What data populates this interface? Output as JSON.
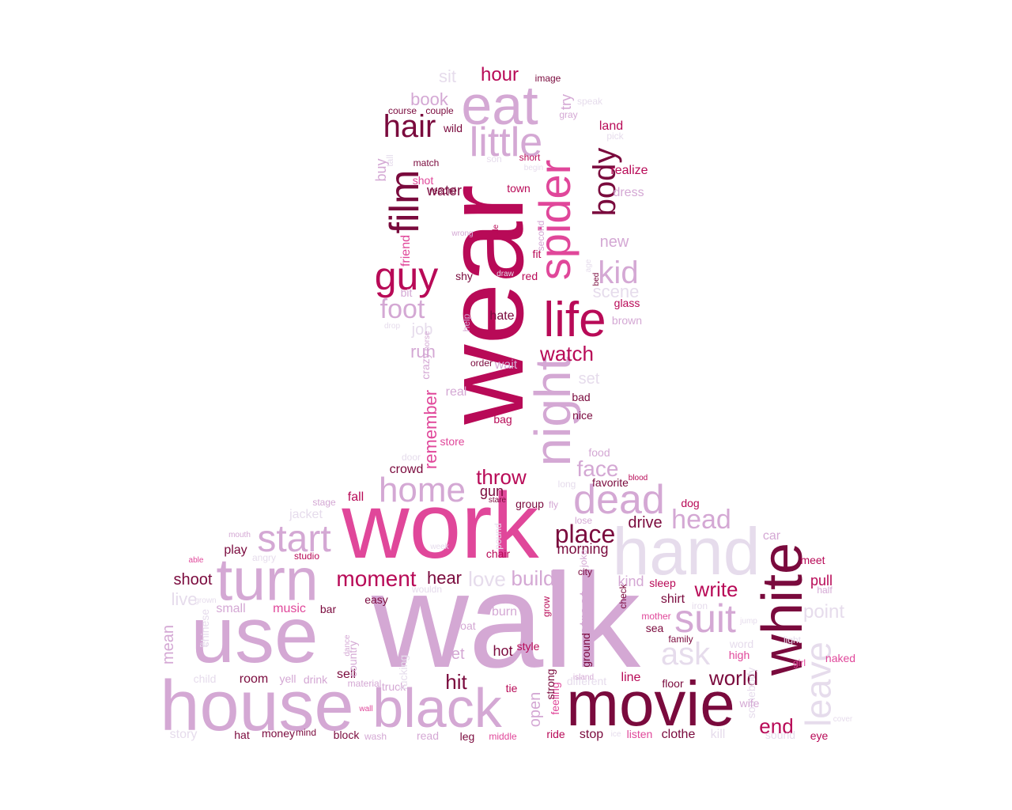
{
  "palette": {
    "c1": "#7a0a3d",
    "c2": "#b80a57",
    "c3": "#e0479a",
    "c4": "#d4a8d4",
    "c5": "#e6dcec"
  },
  "words": [
    {
      "text": "walk",
      "color": "c4",
      "rot": 0
    },
    {
      "text": "wear",
      "color": "c2",
      "rot": 1
    },
    {
      "text": "work",
      "color": "c3",
      "rot": 0
    },
    {
      "text": "use",
      "color": "c4",
      "rot": 0
    },
    {
      "text": "house",
      "color": "c4",
      "rot": 0
    },
    {
      "text": "movie",
      "color": "c1",
      "rot": 0
    },
    {
      "text": "hand",
      "color": "c5",
      "rot": 0
    },
    {
      "text": "white",
      "color": "c1",
      "rot": 1
    },
    {
      "text": "black",
      "color": "c4",
      "rot": 0
    },
    {
      "text": "turn",
      "color": "c4",
      "rot": 0
    },
    {
      "text": "night",
      "color": "c4",
      "rot": 1
    },
    {
      "text": "spider",
      "color": "c3",
      "rot": 1
    },
    {
      "text": "eat",
      "color": "c4",
      "rot": 0
    },
    {
      "text": "life",
      "color": "c2",
      "rot": 0
    },
    {
      "text": "film",
      "color": "c1",
      "rot": 1
    },
    {
      "text": "dead",
      "color": "c4",
      "rot": 0
    },
    {
      "text": "start",
      "color": "c4",
      "rot": 0
    },
    {
      "text": "home",
      "color": "c4",
      "rot": 0
    },
    {
      "text": "little",
      "color": "c4",
      "rot": 0
    },
    {
      "text": "guy",
      "color": "c2",
      "rot": 0
    },
    {
      "text": "body",
      "color": "c1",
      "rot": 1
    },
    {
      "text": "suit",
      "color": "c4",
      "rot": 0
    },
    {
      "text": "leave",
      "color": "c5",
      "rot": 1
    },
    {
      "text": "hair",
      "color": "c1",
      "rot": 0
    },
    {
      "text": "head",
      "color": "c4",
      "rot": 0
    },
    {
      "text": "kid",
      "color": "c4",
      "rot": 0
    },
    {
      "text": "ask",
      "color": "c5",
      "rot": 0
    },
    {
      "text": "foot",
      "color": "c4",
      "rot": 0
    },
    {
      "text": "place",
      "color": "c1",
      "rot": 0
    },
    {
      "text": "face",
      "color": "c4",
      "rot": 0
    },
    {
      "text": "moment",
      "color": "c2",
      "rot": 0
    },
    {
      "text": "watch",
      "color": "c2",
      "rot": 0
    },
    {
      "text": "world",
      "color": "c1",
      "rot": 0
    },
    {
      "text": "write",
      "color": "c2",
      "rot": 0
    },
    {
      "text": "throw",
      "color": "c2",
      "rot": 0
    },
    {
      "text": "hour",
      "color": "c2",
      "rot": 0
    },
    {
      "text": "hit",
      "color": "c1",
      "rot": 0
    },
    {
      "text": "end",
      "color": "c2",
      "rot": 0
    },
    {
      "text": "hear",
      "color": "c1",
      "rot": 0
    },
    {
      "text": "build",
      "color": "c4",
      "rot": 0
    },
    {
      "text": "love",
      "color": "c5",
      "rot": 0
    },
    {
      "text": "remember",
      "color": "c3",
      "rot": 1
    },
    {
      "text": "book",
      "color": "c4",
      "rot": 0
    },
    {
      "text": "scene",
      "color": "c5",
      "rot": 0
    },
    {
      "text": "run",
      "color": "c4",
      "rot": 0
    },
    {
      "text": "drive",
      "color": "c1",
      "rot": 0
    },
    {
      "text": "point",
      "color": "c5",
      "rot": 0
    },
    {
      "text": "mean",
      "color": "c4",
      "rot": 1
    },
    {
      "text": "live",
      "color": "c5",
      "rot": 0
    },
    {
      "text": "street",
      "color": "c4",
      "rot": 1
    },
    {
      "text": "shoot",
      "color": "c1",
      "rot": 0
    },
    {
      "text": "new",
      "color": "c4",
      "rot": 0
    },
    {
      "text": "sit",
      "color": "c5",
      "rot": 0
    },
    {
      "text": "job",
      "color": "c5",
      "rot": 0
    },
    {
      "text": "set",
      "color": "c5",
      "rot": 0
    },
    {
      "text": "water",
      "color": "c1",
      "rot": 0
    },
    {
      "text": "gun",
      "color": "c1",
      "rot": 0
    },
    {
      "text": "kind",
      "color": "c4",
      "rot": 0
    },
    {
      "text": "morning",
      "color": "c1",
      "rot": 0
    },
    {
      "text": "open",
      "color": "c4",
      "rot": 1
    },
    {
      "text": "let",
      "color": "c4",
      "rot": 0
    },
    {
      "text": "hot",
      "color": "c1",
      "rot": 0
    },
    {
      "text": "line",
      "color": "c2",
      "rot": 0
    },
    {
      "text": "pull",
      "color": "c2",
      "rot": 0
    },
    {
      "text": "small",
      "color": "c4",
      "rot": 0
    },
    {
      "text": "play",
      "color": "c1",
      "rot": 0
    },
    {
      "text": "try",
      "color": "c4",
      "rot": 1
    },
    {
      "text": "buy",
      "color": "c4",
      "rot": 1
    },
    {
      "text": "friend",
      "color": "c3",
      "rot": 1
    },
    {
      "text": "dress",
      "color": "c4",
      "rot": 0
    },
    {
      "text": "crazy",
      "color": "c4",
      "rot": 1
    },
    {
      "text": "glass",
      "color": "c2",
      "rot": 0
    },
    {
      "text": "wait",
      "color": "c4",
      "rot": 0
    },
    {
      "text": "real",
      "color": "c4",
      "rot": 0
    },
    {
      "text": "car",
      "color": "c4",
      "rot": 0
    },
    {
      "text": "dog",
      "color": "c2",
      "rot": 0
    },
    {
      "text": "sleep",
      "color": "c2",
      "rot": 0
    },
    {
      "text": "floor",
      "color": "c1",
      "rot": 0
    },
    {
      "text": "clothe",
      "color": "c1",
      "rot": 0
    },
    {
      "text": "naked",
      "color": "c3",
      "rot": 0
    },
    {
      "text": "ground",
      "color": "c1",
      "rot": 1
    },
    {
      "text": "bar",
      "color": "c1",
      "rot": 0
    },
    {
      "text": "burn",
      "color": "c4",
      "rot": 0
    },
    {
      "text": "boat",
      "color": "c4",
      "rot": 0
    },
    {
      "text": "sell",
      "color": "c1",
      "rot": 0
    },
    {
      "text": "room",
      "color": "c1",
      "rot": 0
    },
    {
      "text": "crowd",
      "color": "c1",
      "rot": 0
    },
    {
      "text": "story",
      "color": "c5",
      "rot": 0
    },
    {
      "text": "music",
      "color": "c3",
      "rot": 0
    },
    {
      "text": "word",
      "color": "c5",
      "rot": 0
    },
    {
      "text": "meet",
      "color": "c2",
      "rot": 0
    },
    {
      "text": "eye",
      "color": "c2",
      "rot": 0
    },
    {
      "text": "listen",
      "color": "c3",
      "rot": 0
    },
    {
      "text": "ride",
      "color": "c2",
      "rot": 0
    },
    {
      "text": "stop",
      "color": "c1",
      "rot": 0
    },
    {
      "text": "truck",
      "color": "c4",
      "rot": 0
    },
    {
      "text": "leg",
      "color": "c1",
      "rot": 0
    },
    {
      "text": "block",
      "color": "c1",
      "rot": 0
    },
    {
      "text": "mind",
      "color": "c1",
      "rot": 0
    },
    {
      "text": "money",
      "color": "c1",
      "rot": 0
    },
    {
      "text": "hat",
      "color": "c1",
      "rot": 0
    },
    {
      "text": "drink",
      "color": "c4",
      "rot": 0
    },
    {
      "text": "bad",
      "color": "c1",
      "rot": 0
    },
    {
      "text": "nice",
      "color": "c1",
      "rot": 0
    },
    {
      "text": "hate",
      "color": "c1",
      "rot": 0
    },
    {
      "text": "shy",
      "color": "c1",
      "rot": 0
    },
    {
      "text": "realize",
      "color": "c2",
      "rot": 0
    },
    {
      "text": "land",
      "color": "c2",
      "rot": 0
    },
    {
      "text": "pick",
      "color": "c5",
      "rot": 0
    },
    {
      "text": "wild",
      "color": "c1",
      "rot": 0
    },
    {
      "text": "town",
      "color": "c2",
      "rot": 0
    },
    {
      "text": "shot",
      "color": "c3",
      "rot": 0
    },
    {
      "text": "match",
      "color": "c1",
      "rot": 0
    },
    {
      "text": "record",
      "color": "c1",
      "rot": 0
    },
    {
      "text": "short",
      "color": "c2",
      "rot": 0
    },
    {
      "text": "course",
      "color": "c1",
      "rot": 0
    },
    {
      "text": "couple",
      "color": "c1",
      "rot": 0
    },
    {
      "text": "speak",
      "color": "c5",
      "rot": 0
    },
    {
      "text": "image",
      "color": "c1",
      "rot": 0
    },
    {
      "text": "gray",
      "color": "c4",
      "rot": 0
    },
    {
      "text": "son",
      "color": "c5",
      "rot": 0
    },
    {
      "text": "begin",
      "color": "c5",
      "rot": 0
    },
    {
      "text": "tall",
      "color": "c5",
      "rot": 1
    },
    {
      "text": "second",
      "color": "c4",
      "rot": 1
    },
    {
      "text": "fit",
      "color": "c2",
      "rot": 0
    },
    {
      "text": "red",
      "color": "c2",
      "rot": 0
    },
    {
      "text": "age",
      "color": "c5",
      "rot": 1
    },
    {
      "text": "bed",
      "color": "c1",
      "rot": 1
    },
    {
      "text": "brown",
      "color": "c4",
      "rot": 0
    },
    {
      "text": "bit",
      "color": "c4",
      "rot": 0
    },
    {
      "text": "drop",
      "color": "c5",
      "rot": 0
    },
    {
      "text": "draw",
      "color": "c5",
      "rot": 0
    },
    {
      "text": "wrong",
      "color": "c4",
      "rot": 0
    },
    {
      "text": "sale",
      "color": "c2",
      "rot": 1
    },
    {
      "text": "help",
      "color": "c4",
      "rot": 1
    },
    {
      "text": "horse",
      "color": "c4",
      "rot": 1
    },
    {
      "text": "order",
      "color": "c1",
      "rot": 0
    },
    {
      "text": "bag",
      "color": "c2",
      "rot": 0
    },
    {
      "text": "store",
      "color": "c3",
      "rot": 0
    },
    {
      "text": "door",
      "color": "c5",
      "rot": 0
    },
    {
      "text": "food",
      "color": "c4",
      "rot": 0
    },
    {
      "text": "long",
      "color": "c5",
      "rot": 0
    },
    {
      "text": "favorite",
      "color": "c1",
      "rot": 0
    },
    {
      "text": "blood",
      "color": "c2",
      "rot": 0
    },
    {
      "text": "group",
      "color": "c1",
      "rot": 0
    },
    {
      "text": "fly",
      "color": "c4",
      "rot": 0
    },
    {
      "text": "stare",
      "color": "c1",
      "rot": 0
    },
    {
      "text": "stage",
      "color": "c4",
      "rot": 0
    },
    {
      "text": "fall",
      "color": "c2",
      "rot": 0
    },
    {
      "text": "jacket",
      "color": "c5",
      "rot": 0
    },
    {
      "text": "lose",
      "color": "c4",
      "rot": 0
    },
    {
      "text": "mouth",
      "color": "c4",
      "rot": 0
    },
    {
      "text": "week",
      "color": "c5",
      "rot": 0
    },
    {
      "text": "pound",
      "color": "c5",
      "rot": 1
    },
    {
      "text": "chair",
      "color": "c2",
      "rot": 0
    },
    {
      "text": "joke",
      "color": "c4",
      "rot": 1
    },
    {
      "text": "city",
      "color": "c1",
      "rot": 0
    },
    {
      "text": "able",
      "color": "c3",
      "rot": 0
    },
    {
      "text": "angry",
      "color": "c5",
      "rot": 0
    },
    {
      "text": "studio",
      "color": "c2",
      "rot": 0
    },
    {
      "text": "wouldn",
      "color": "c5",
      "rot": 0
    },
    {
      "text": "easy",
      "color": "c1",
      "rot": 0
    },
    {
      "text": "grow",
      "color": "c2",
      "rot": 1
    },
    {
      "text": "check",
      "color": "c1",
      "rot": 1
    },
    {
      "text": "shirt",
      "color": "c1",
      "rot": 0
    },
    {
      "text": "iron",
      "color": "c5",
      "rot": 0
    },
    {
      "text": "half",
      "color": "c4",
      "rot": 0
    },
    {
      "text": "grown",
      "color": "c5",
      "rot": 0
    },
    {
      "text": "chinese",
      "color": "c5",
      "rot": 1
    },
    {
      "text": "air",
      "color": "c5",
      "rot": 0
    },
    {
      "text": "dance",
      "color": "c4",
      "rot": 1
    },
    {
      "text": "country",
      "color": "c4",
      "rot": 1
    },
    {
      "text": "yell",
      "color": "c4",
      "rot": 0
    },
    {
      "text": "child",
      "color": "c5",
      "rot": 0
    },
    {
      "text": "material",
      "color": "c4",
      "rot": 0
    },
    {
      "text": "wall",
      "color": "c3",
      "rot": 0
    },
    {
      "text": "fucking",
      "color": "c5",
      "rot": 1
    },
    {
      "text": "style",
      "color": "c2",
      "rot": 0
    },
    {
      "text": "feeling",
      "color": "c3",
      "rot": 1
    },
    {
      "text": "strong",
      "color": "c1",
      "rot": 1
    },
    {
      "text": "tie",
      "color": "c2",
      "rot": 0
    },
    {
      "text": "read",
      "color": "c4",
      "rot": 0
    },
    {
      "text": "wash",
      "color": "c4",
      "rot": 0
    },
    {
      "text": "middle",
      "color": "c3",
      "rot": 0
    },
    {
      "text": "different",
      "color": "c5",
      "rot": 0
    },
    {
      "text": "island",
      "color": "c4",
      "rot": 0
    },
    {
      "text": "ice",
      "color": "c5",
      "rot": 0
    },
    {
      "text": "kill",
      "color": "c5",
      "rot": 0
    },
    {
      "text": "sound",
      "color": "c5",
      "rot": 0
    },
    {
      "text": "cover",
      "color": "c5",
      "rot": 0
    },
    {
      "text": "somebody",
      "color": "c5",
      "rot": 1
    },
    {
      "text": "wife",
      "color": "c4",
      "rot": 0
    },
    {
      "text": "high",
      "color": "c3",
      "rot": 0
    },
    {
      "text": "girl",
      "color": "c3",
      "rot": 0
    },
    {
      "text": "light",
      "color": "c5",
      "rot": 0
    },
    {
      "text": "jump",
      "color": "c5",
      "rot": 0
    },
    {
      "text": "family",
      "color": "c1",
      "rot": 0
    },
    {
      "text": "mother",
      "color": "c3",
      "rot": 0
    },
    {
      "text": "sea",
      "color": "c1",
      "rot": 0
    },
    {
      "text": "pay",
      "color": "c4",
      "rot": 0
    }
  ]
}
